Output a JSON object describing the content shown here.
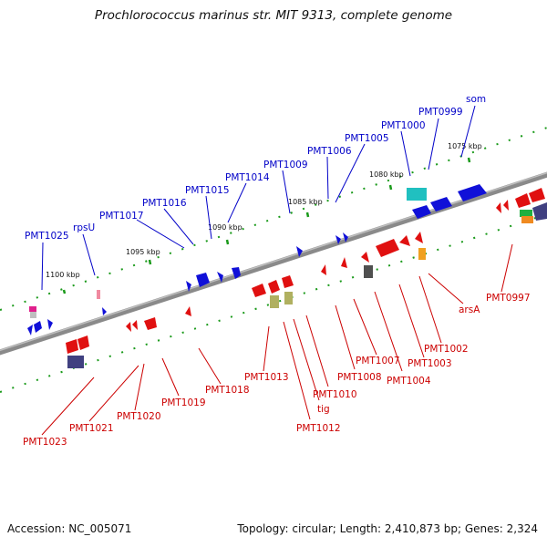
{
  "title": "Prochlorococcus marinus str. MIT 9313, complete genome",
  "footer": {
    "accession": "Accession: NC_005071",
    "summary": "Topology: circular; Length: 2,410,873 bp; Genes: 2,324"
  },
  "colors": {
    "forward_label": "#0000c8",
    "reverse_label": "#cc0000",
    "axis": "#808080",
    "tick": "#1a9a1a"
  },
  "ticks": [
    "1100 kbp",
    "1095 kbp",
    "1090 kbp",
    "1085 kbp",
    "1080 kbp",
    "1075 kbp"
  ],
  "genes_top": [
    "PMT1025",
    "rpsU",
    "PMT1017",
    "PMT1016",
    "PMT1015",
    "PMT1014",
    "PMT1009",
    "PMT1006",
    "PMT1005",
    "PMT1000",
    "PMT0999",
    "som"
  ],
  "genes_bottom": [
    "PMT0997",
    "arsA",
    "PMT1002",
    "PMT1003",
    "PMT1004",
    "PMT1007",
    "PMT1008",
    "PMT1010",
    "tig",
    "PMT1012",
    "PMT1013",
    "PMT1018",
    "PMT1019",
    "PMT1020",
    "PMT1021",
    "PMT1023"
  ]
}
